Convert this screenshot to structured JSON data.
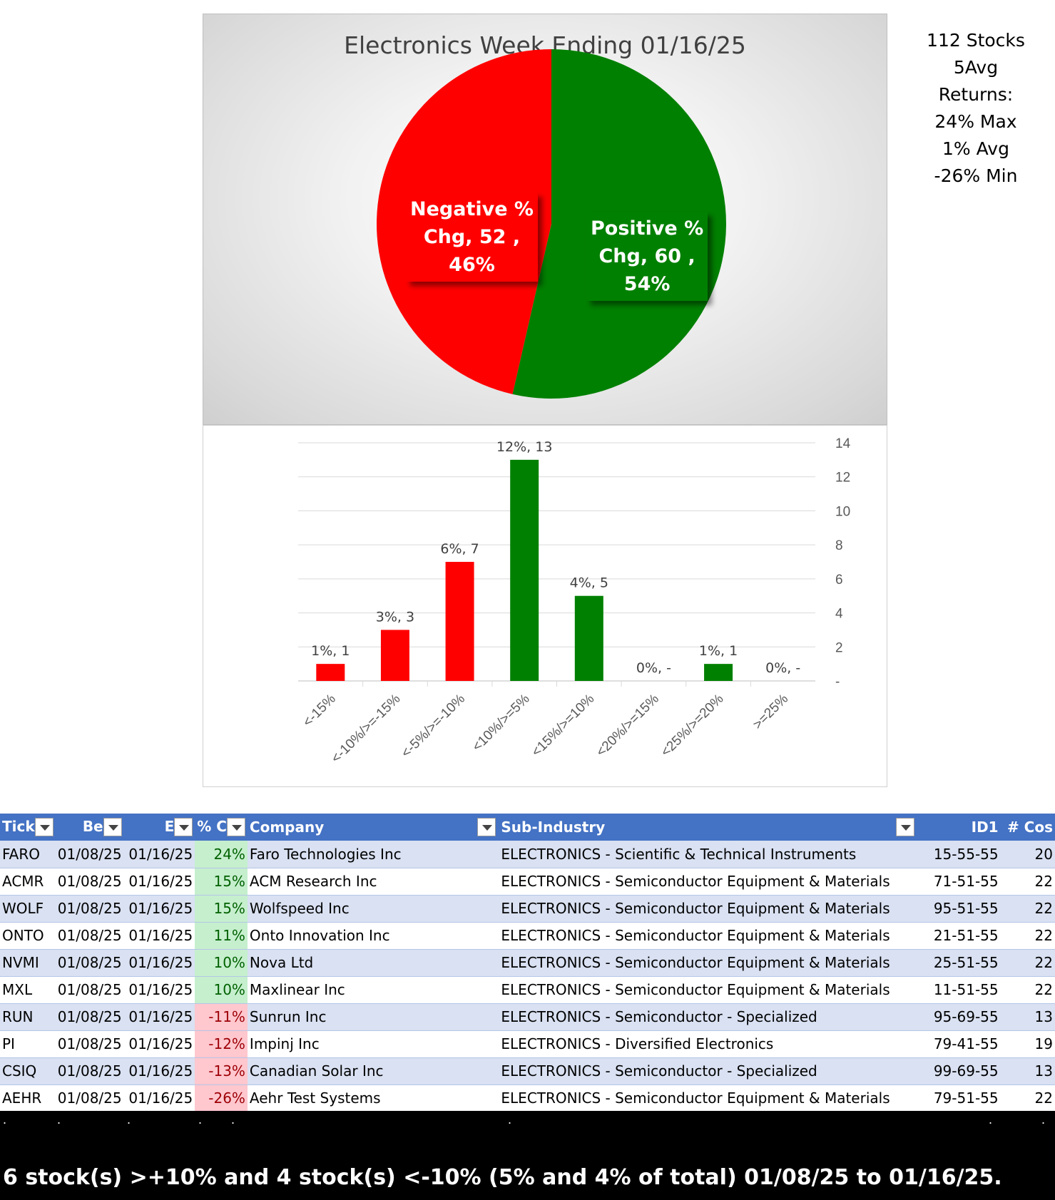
{
  "stats": {
    "lines": [
      "112 Stocks",
      "5Avg",
      "Returns:",
      "24% Max",
      "1% Avg",
      "-26% Min"
    ]
  },
  "chart_data": [
    {
      "type": "pie",
      "title": "Electronics Week Ending 01/16/25",
      "slices": [
        {
          "name": "Negative % Chg",
          "value": 52,
          "percent": "46%",
          "color": "#ff0000"
        },
        {
          "name": "Positive % Chg",
          "value": 60,
          "percent": "54%",
          "color": "#008000"
        }
      ],
      "labels": {
        "negative": [
          "Negative %",
          "Chg,  52 ,",
          "46%"
        ],
        "positive": [
          "Positive %",
          "Chg,  60 ,",
          "54%"
        ]
      }
    },
    {
      "type": "bar",
      "categories": [
        "<-15%",
        "<-10%/>=-15%",
        "<-5%/>=-10%",
        "<10%/>=5%",
        "<15%/>=10%",
        "<20%/>=15%",
        "<25%/>=20%",
        ">=25%"
      ],
      "values": [
        1,
        3,
        7,
        13,
        5,
        0,
        1,
        0
      ],
      "colors": [
        "#ff0000",
        "#ff0000",
        "#ff0000",
        "#008000",
        "#008000",
        "#008000",
        "#008000",
        "#008000"
      ],
      "data_labels": [
        "1%,  1",
        "3%,  3",
        "6%,  7",
        "12%,  13",
        "4%,  5",
        "0%,  -",
        "1%,  1",
        "0%,  -"
      ],
      "ylim": [
        0,
        14
      ],
      "yticks": [
        "-",
        "2",
        "4",
        "6",
        "8",
        "10",
        "12",
        "14"
      ],
      "ytick_values": [
        0,
        2,
        4,
        6,
        8,
        10,
        12,
        14
      ],
      "grid": true,
      "y_axis_side": "right"
    }
  ],
  "table": {
    "headers": {
      "ticker": "Tick",
      "begin": "Be",
      "end": "E",
      "pct": "% C",
      "company": "Company",
      "subindustry": "Sub-Industry",
      "id1": "ID1",
      "cos": "# Cos"
    },
    "rows": [
      {
        "ticker": "FARO",
        "begin": "01/08/25",
        "end": "01/16/25",
        "pct": "24%",
        "sign": "pos",
        "company": "Faro Technologies Inc",
        "subindustry": "ELECTRONICS - Scientific & Technical Instruments",
        "id1": "15-55-55",
        "cos": "20"
      },
      {
        "ticker": "ACMR",
        "begin": "01/08/25",
        "end": "01/16/25",
        "pct": "15%",
        "sign": "pos",
        "company": "ACM Research Inc",
        "subindustry": "ELECTRONICS - Semiconductor Equipment & Materials",
        "id1": "71-51-55",
        "cos": "22"
      },
      {
        "ticker": "WOLF",
        "begin": "01/08/25",
        "end": "01/16/25",
        "pct": "15%",
        "sign": "pos",
        "company": "Wolfspeed Inc",
        "subindustry": "ELECTRONICS - Semiconductor Equipment & Materials",
        "id1": "95-51-55",
        "cos": "22"
      },
      {
        "ticker": "ONTO",
        "begin": "01/08/25",
        "end": "01/16/25",
        "pct": "11%",
        "sign": "pos",
        "company": "Onto Innovation Inc",
        "subindustry": "ELECTRONICS - Semiconductor Equipment & Materials",
        "id1": "21-51-55",
        "cos": "22"
      },
      {
        "ticker": "NVMI",
        "begin": "01/08/25",
        "end": "01/16/25",
        "pct": "10%",
        "sign": "pos",
        "company": "Nova Ltd",
        "subindustry": "ELECTRONICS - Semiconductor Equipment & Materials",
        "id1": "25-51-55",
        "cos": "22"
      },
      {
        "ticker": "MXL",
        "begin": "01/08/25",
        "end": "01/16/25",
        "pct": "10%",
        "sign": "pos",
        "company": "Maxlinear Inc",
        "subindustry": "ELECTRONICS - Semiconductor Equipment & Materials",
        "id1": "11-51-55",
        "cos": "22"
      },
      {
        "ticker": "RUN",
        "begin": "01/08/25",
        "end": "01/16/25",
        "pct": "-11%",
        "sign": "neg",
        "company": "Sunrun Inc",
        "subindustry": "ELECTRONICS - Semiconductor - Specialized",
        "id1": "95-69-55",
        "cos": "13"
      },
      {
        "ticker": "PI",
        "begin": "01/08/25",
        "end": "01/16/25",
        "pct": "-12%",
        "sign": "neg",
        "company": "Impinj Inc",
        "subindustry": "ELECTRONICS - Diversified Electronics",
        "id1": "79-41-55",
        "cos": "19"
      },
      {
        "ticker": "CSIQ",
        "begin": "01/08/25",
        "end": "01/16/25",
        "pct": "-13%",
        "sign": "neg",
        "company": "Canadian Solar Inc",
        "subindustry": "ELECTRONICS - Semiconductor - Specialized",
        "id1": "99-69-55",
        "cos": "13"
      },
      {
        "ticker": "AEHR",
        "begin": "01/08/25",
        "end": "01/16/25",
        "pct": "-26%",
        "sign": "neg",
        "company": "Aehr Test Systems",
        "subindustry": "ELECTRONICS - Semiconductor Equipment & Materials",
        "id1": "79-51-55",
        "cos": "22"
      }
    ]
  },
  "footer": {
    "summary": "6 stock(s) >+10% and 4 stock(s) <-10% (5% and 4% of total) 01/08/25 to 01/16/25."
  }
}
